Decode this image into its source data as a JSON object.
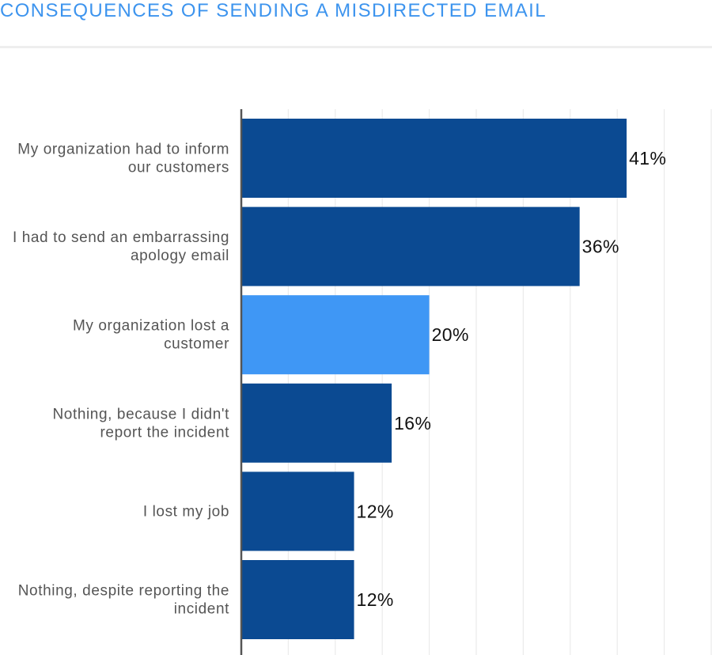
{
  "chart_data": {
    "type": "bar",
    "orientation": "horizontal",
    "title": "CONSEQUENCES OF SENDING A MISDIRECTED EMAIL",
    "categories": [
      [
        "My organization had to inform",
        "our customers"
      ],
      [
        "I had to send an embarrassing",
        "apology email"
      ],
      [
        "My organization lost a",
        "customer"
      ],
      [
        "Nothing, because I didn't",
        "report the incident"
      ],
      [
        "I lost my job"
      ],
      [
        "Nothing, despite reporting the",
        "incident"
      ]
    ],
    "values": [
      41,
      36,
      20,
      16,
      12,
      12
    ],
    "value_labels": [
      "41%",
      "36%",
      "20%",
      "16%",
      "12%",
      "12%"
    ],
    "highlight_index": 2,
    "colors": {
      "bar": "#0b4a92",
      "highlight": "#3f97f5",
      "grid": "#ebebeb",
      "axis": "#555555",
      "title": "#3d94ee"
    },
    "xlim": [
      0,
      50
    ],
    "grid": true
  }
}
